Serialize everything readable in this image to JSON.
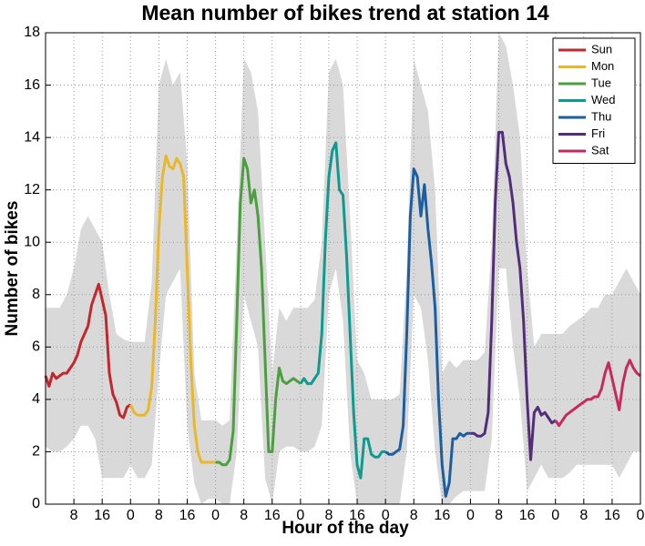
{
  "chart_data": {
    "type": "line",
    "title": "Mean number of bikes trend at station 14",
    "xlabel": "Hour of the day",
    "ylabel": "Number of bikes",
    "xlim": [
      0,
      168
    ],
    "ylim": [
      0,
      18
    ],
    "xticks": [
      8,
      16,
      {
        "value": 24,
        "label": "0"
      },
      {
        "value": 32,
        "label": "8"
      },
      {
        "value": 40,
        "label": "16"
      },
      {
        "value": 48,
        "label": "0"
      },
      {
        "value": 56,
        "label": "8"
      },
      {
        "value": 64,
        "label": "16"
      },
      {
        "value": 72,
        "label": "0"
      },
      {
        "value": 80,
        "label": "8"
      },
      {
        "value": 88,
        "label": "16"
      },
      {
        "value": 96,
        "label": "0"
      },
      {
        "value": 104,
        "label": "8"
      },
      {
        "value": 112,
        "label": "16"
      },
      {
        "value": 120,
        "label": "0"
      },
      {
        "value": 128,
        "label": "8"
      },
      {
        "value": 136,
        "label": "16"
      },
      {
        "value": 144,
        "label": "0"
      },
      {
        "value": 152,
        "label": "8"
      },
      {
        "value": 160,
        "label": "16"
      },
      {
        "value": 168,
        "label": "0"
      }
    ],
    "yticks": [
      0,
      2,
      4,
      6,
      8,
      10,
      12,
      14,
      16,
      18
    ],
    "grid": true,
    "legend": "upper right",
    "band": {
      "color": "#d9d9d9",
      "x": [
        0,
        2,
        4,
        6,
        8,
        10,
        12,
        14,
        16,
        18,
        20,
        22,
        24,
        26,
        28,
        30,
        32,
        34,
        36,
        38,
        40,
        42,
        44,
        46,
        48,
        50,
        52,
        54,
        56,
        58,
        60,
        62,
        64,
        66,
        68,
        70,
        72,
        74,
        76,
        78,
        80,
        82,
        84,
        86,
        88,
        90,
        92,
        94,
        96,
        98,
        100,
        102,
        104,
        106,
        108,
        110,
        112,
        114,
        116,
        118,
        120,
        122,
        124,
        126,
        128,
        130,
        132,
        134,
        136,
        138,
        140,
        142,
        144,
        146,
        148,
        150,
        152,
        154,
        156,
        158,
        160,
        162,
        164,
        166,
        168
      ],
      "upper": [
        7.5,
        7.5,
        7.5,
        8.0,
        9.0,
        10.5,
        11.0,
        10.5,
        10.0,
        8.0,
        6.5,
        6.3,
        6.2,
        6.2,
        6.2,
        8.5,
        16.0,
        17.0,
        16.0,
        16.5,
        13.0,
        5.0,
        3.2,
        3.2,
        3.2,
        3.0,
        3.2,
        10.0,
        17.0,
        16.5,
        15.0,
        10.0,
        5.0,
        7.5,
        7.0,
        7.5,
        7.5,
        7.5,
        7.8,
        10.0,
        16.5,
        17.0,
        16.0,
        11.0,
        5.5,
        5.0,
        4.0,
        4.0,
        4.0,
        4.0,
        4.2,
        9.0,
        17.0,
        16.0,
        15.0,
        12.0,
        5.0,
        5.5,
        5.2,
        5.5,
        5.5,
        5.5,
        5.8,
        10.0,
        18.0,
        17.5,
        16.0,
        14.0,
        9.0,
        6.0,
        6.5,
        6.5,
        6.5,
        6.5,
        6.8,
        7.0,
        7.2,
        7.5,
        7.5,
        8.0,
        8.0,
        8.5,
        9.0,
        8.5,
        8.0
      ],
      "lower": [
        2.2,
        2.0,
        2.0,
        2.2,
        2.5,
        3.0,
        3.0,
        2.5,
        1.0,
        1.0,
        1.0,
        1.0,
        1.5,
        1.0,
        1.0,
        1.5,
        5.0,
        8.0,
        8.5,
        9.0,
        3.0,
        0.8,
        0,
        0.2,
        0.2,
        0,
        0,
        2.0,
        8.0,
        7.0,
        6.0,
        1.0,
        0,
        2.0,
        2.2,
        2.2,
        2.0,
        2.0,
        2.2,
        3.0,
        8.0,
        9.0,
        7.0,
        2.0,
        0,
        0,
        0,
        0,
        0,
        0,
        0,
        2.0,
        8.0,
        7.5,
        5.5,
        2.0,
        0,
        0,
        0.3,
        0.5,
        0.5,
        0.5,
        0.5,
        2.5,
        9.0,
        9.0,
        6.0,
        4.0,
        0.5,
        1.0,
        1.5,
        1.0,
        1.0,
        1.0,
        1.2,
        1.5,
        1.5,
        1.5,
        1.5,
        1.5,
        1.5,
        1.0,
        1.5,
        2.0,
        2.0
      ]
    },
    "series": [
      {
        "name": "Sun",
        "color": "#c1272d",
        "x": [
          0,
          1,
          2,
          3,
          4,
          5,
          6,
          7,
          8,
          9,
          10,
          11,
          12,
          13,
          14,
          15,
          16,
          17,
          18,
          19,
          20,
          21,
          22,
          23,
          24
        ],
        "values": [
          4.9,
          4.5,
          5.0,
          4.8,
          4.9,
          5.0,
          5.0,
          5.2,
          5.4,
          5.7,
          6.2,
          6.5,
          6.8,
          7.6,
          8.0,
          8.4,
          7.8,
          7.2,
          5.0,
          4.2,
          3.9,
          3.4,
          3.3,
          3.7,
          3.8
        ]
      },
      {
        "name": "Mon",
        "color": "#e8b82a",
        "x": [
          24,
          25,
          26,
          27,
          28,
          29,
          30,
          31,
          32,
          33,
          34,
          35,
          36,
          37,
          38,
          39,
          40,
          41,
          42,
          43,
          44,
          45,
          46,
          47,
          48
        ],
        "values": [
          3.8,
          3.5,
          3.4,
          3.4,
          3.4,
          3.6,
          4.5,
          7.0,
          10.5,
          12.5,
          13.3,
          12.9,
          12.8,
          13.2,
          13.0,
          12.5,
          9.0,
          5.5,
          3.0,
          2.0,
          1.6,
          1.6,
          1.6,
          1.6,
          1.6
        ]
      },
      {
        "name": "Tue",
        "color": "#4b9f3f",
        "x": [
          48,
          49,
          50,
          51,
          52,
          53,
          54,
          55,
          56,
          57,
          58,
          59,
          60,
          61,
          62,
          63,
          64,
          65,
          66,
          67,
          68,
          69,
          70,
          71,
          72
        ],
        "values": [
          1.6,
          1.6,
          1.5,
          1.5,
          1.7,
          2.8,
          7.0,
          11.5,
          13.2,
          12.8,
          11.5,
          12.0,
          11.0,
          9.0,
          5.5,
          2.0,
          2.0,
          4.0,
          5.2,
          4.7,
          4.6,
          4.7,
          4.8,
          4.7,
          4.6
        ]
      },
      {
        "name": "Wed",
        "color": "#0e9a8f",
        "x": [
          72,
          73,
          74,
          75,
          76,
          77,
          78,
          79,
          80,
          81,
          82,
          83,
          84,
          85,
          86,
          87,
          88,
          89,
          90,
          91,
          92,
          93,
          94,
          95,
          96
        ],
        "values": [
          4.6,
          4.8,
          4.6,
          4.6,
          4.8,
          5.0,
          6.5,
          10.0,
          12.5,
          13.5,
          13.8,
          12.0,
          11.8,
          9.5,
          6.5,
          3.5,
          1.5,
          1.0,
          2.5,
          2.5,
          1.9,
          1.8,
          1.8,
          2.0,
          2.0
        ]
      },
      {
        "name": "Thu",
        "color": "#1c5e9e",
        "x": [
          96,
          97,
          98,
          99,
          100,
          101,
          102,
          103,
          104,
          105,
          106,
          107,
          108,
          109,
          110,
          111,
          112,
          113,
          114,
          115,
          116,
          117,
          118,
          119,
          120
        ],
        "values": [
          2.0,
          1.9,
          1.9,
          2.0,
          2.1,
          3.0,
          6.5,
          11.0,
          12.8,
          12.5,
          11.0,
          12.2,
          10.5,
          9.2,
          7.5,
          4.0,
          1.5,
          0.3,
          0.8,
          2.5,
          2.5,
          2.7,
          2.6,
          2.7,
          2.7
        ]
      },
      {
        "name": "Fri",
        "color": "#522e78",
        "x": [
          120,
          121,
          122,
          123,
          124,
          125,
          126,
          127,
          128,
          129,
          130,
          131,
          132,
          133,
          134,
          135,
          136,
          137,
          138,
          139,
          140,
          141,
          142,
          143,
          144
        ],
        "values": [
          2.7,
          2.7,
          2.6,
          2.6,
          2.7,
          3.5,
          7.0,
          11.5,
          14.2,
          14.2,
          13.0,
          12.5,
          11.5,
          10.0,
          9.0,
          7.0,
          4.0,
          1.7,
          3.5,
          3.7,
          3.4,
          3.5,
          3.3,
          3.1,
          3.2
        ]
      },
      {
        "name": "Sat",
        "color": "#c52a5f",
        "x": [
          144,
          145,
          146,
          147,
          148,
          149,
          150,
          151,
          152,
          153,
          154,
          155,
          156,
          157,
          158,
          159,
          160,
          161,
          162,
          163,
          164,
          165,
          166,
          167,
          168
        ],
        "values": [
          3.2,
          3.0,
          3.2,
          3.4,
          3.5,
          3.6,
          3.7,
          3.8,
          3.9,
          4.0,
          4.0,
          4.1,
          4.1,
          4.4,
          5.0,
          5.4,
          4.8,
          4.2,
          3.6,
          4.6,
          5.2,
          5.5,
          5.2,
          5.0,
          4.9
        ]
      }
    ]
  }
}
